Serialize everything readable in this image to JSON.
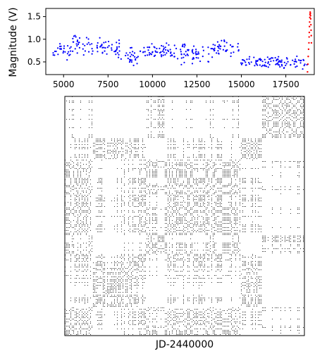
{
  "chart_data": [
    {
      "type": "scatter",
      "title": "",
      "xlabel": "",
      "ylabel": "Magnitude (V)",
      "xlim": [
        4000,
        19100
      ],
      "ylim": [
        0.22,
        1.68
      ],
      "xticks": [
        5000,
        7500,
        10000,
        12500,
        15000,
        17500
      ],
      "yticks": [
        0.5,
        1.0,
        1.5
      ],
      "grid": false,
      "series": [
        {
          "color": "#0000ff",
          "marker": "dot",
          "points_by_segment": [
            {
              "x_range": [
                4400,
                5400
              ],
              "y_center": 0.72,
              "spread": 0.22
            },
            {
              "x_range": [
                5400,
                6600
              ],
              "y_center": 0.88,
              "spread": 0.25
            },
            {
              "x_range": [
                6600,
                8200
              ],
              "y_center": 0.82,
              "spread": 0.2
            },
            {
              "x_range": [
                8200,
                9200
              ],
              "y_center": 0.62,
              "spread": 0.18
            },
            {
              "x_range": [
                9200,
                11200
              ],
              "y_center": 0.72,
              "spread": 0.15
            },
            {
              "x_range": [
                11200,
                13400
              ],
              "y_center": 0.68,
              "spread": 0.2
            },
            {
              "x_range": [
                13400,
                14900
              ],
              "y_center": 0.85,
              "spread": 0.2
            },
            {
              "x_range": [
                14900,
                16800
              ],
              "y_center": 0.5,
              "spread": 0.14
            },
            {
              "x_range": [
                16800,
                18700
              ],
              "y_center": 0.48,
              "spread": 0.14
            }
          ]
        },
        {
          "color": "#ff0000",
          "marker": "dot",
          "points": [
            [
              18720,
              0.28
            ],
            [
              18740,
              0.45
            ],
            [
              18760,
              0.62
            ],
            [
              18780,
              0.78
            ],
            [
              18800,
              0.92
            ],
            [
              18810,
              1.05
            ],
            [
              18820,
              1.15
            ],
            [
              18830,
              1.28
            ],
            [
              18840,
              1.38
            ],
            [
              18850,
              1.48
            ],
            [
              18860,
              1.55
            ],
            [
              18870,
              1.6
            ],
            [
              18880,
              1.57
            ],
            [
              18890,
              1.52
            ],
            [
              18900,
              1.45
            ],
            [
              18910,
              1.32
            ],
            [
              18920,
              1.2
            ],
            [
              18930,
              1.08
            ],
            [
              18940,
              0.92
            ]
          ]
        }
      ]
    },
    {
      "type": "heatmap",
      "title": "",
      "xlabel": "JD-2440000",
      "ylabel": "",
      "description": "",
      "colors": {
        "point": "#000000",
        "background": "#ffffff"
      }
    }
  ]
}
